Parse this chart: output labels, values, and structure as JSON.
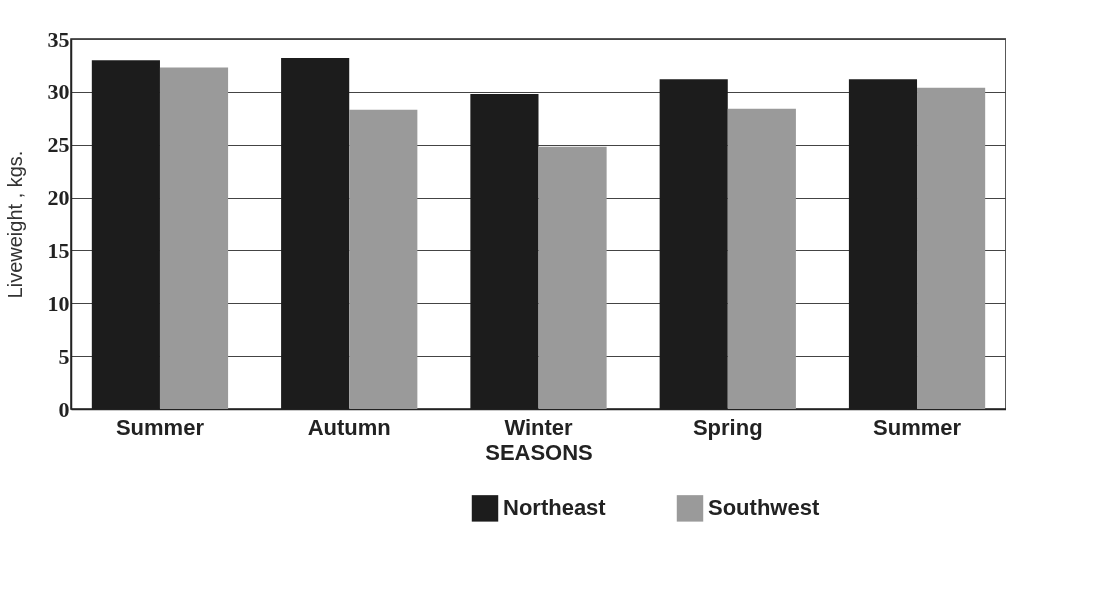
{
  "chart_data": {
    "type": "bar",
    "xlabel": "SEASONS",
    "ylabel": "Liveweight , kgs.",
    "categories": [
      "Summer",
      "Autumn",
      "Winter",
      "Spring",
      "Summer"
    ],
    "series": [
      {
        "name": "Northeast",
        "color": "#1c1c1c",
        "values": [
          33,
          33.2,
          29.8,
          31.2,
          31.2
        ]
      },
      {
        "name": "Southwest",
        "color": "#9a9a9a",
        "values": [
          32.3,
          28.3,
          24.8,
          28.4,
          30.4
        ]
      }
    ],
    "ylim": [
      0,
      35
    ],
    "yticks": [
      0,
      5,
      10,
      15,
      20,
      25,
      30,
      35
    ],
    "grid": "y",
    "legend": "bottom"
  }
}
